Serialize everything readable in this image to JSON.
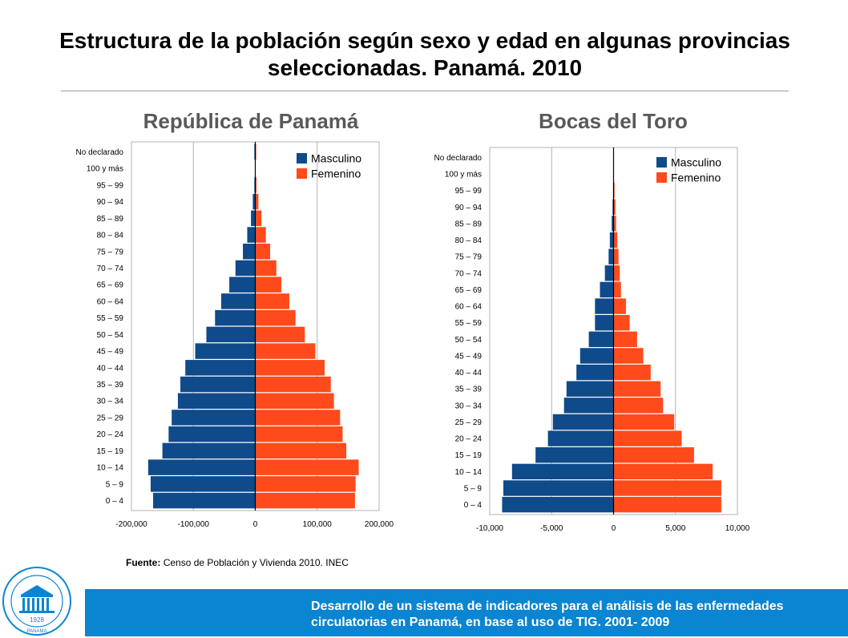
{
  "page": {
    "title": "Estructura de la población según sexo y edad en algunas provincias seleccionadas. Panamá. 2010",
    "source_label": "Fuente:",
    "source_text": "Censo de Población y Vivienda  2010. INEC",
    "footer_text": "Desarrollo de un sistema de indicadores para el análisis de las enfermedades circulatorias en Panamá, en base al uso de TIG. 2001- 2009",
    "logo": {
      "icon": "institute-seal-icon",
      "year": "1928",
      "place": "PANAMA"
    }
  },
  "colors": {
    "male": "#0f4a8a",
    "female": "#ff4a1c",
    "grid": "#b3b3b3",
    "footer": "#0a85d1"
  },
  "chart_data": [
    {
      "type": "bar",
      "orientation": "horizontal",
      "title": "República de Panamá",
      "categories": [
        "0 – 4",
        "5 – 9",
        "10 – 14",
        "15 – 19",
        "20 – 24",
        "25 – 29",
        "30 – 34",
        "35 – 39",
        "40 – 44",
        "45 – 49",
        "50 – 54",
        "55 – 59",
        "60 – 64",
        "65 – 69",
        "70 – 74",
        "75 – 79",
        "80 – 84",
        "85 – 89",
        "90 – 94",
        "95 – 99",
        "100 y más",
        "No declarado"
      ],
      "series": [
        {
          "name": "Masculino",
          "values": [
            -165000,
            -169000,
            -173000,
            -150000,
            -140000,
            -135000,
            -125000,
            -121000,
            -113000,
            -97000,
            -79000,
            -65000,
            -55000,
            -42000,
            -32000,
            -20000,
            -13000,
            -7000,
            -4000,
            -1500,
            -500,
            -1500
          ]
        },
        {
          "name": "Femenino",
          "values": [
            161000,
            162000,
            167000,
            147000,
            141000,
            137000,
            127000,
            122000,
            112000,
            97000,
            80000,
            65000,
            55000,
            42000,
            34000,
            24000,
            17000,
            10000,
            5000,
            2000,
            700,
            1500
          ]
        }
      ],
      "xlim": [
        -200000,
        200000
      ],
      "xticks": [
        "-200,000",
        "-100,000",
        "0",
        "100,000",
        "200,000"
      ],
      "legend": "top-right"
    },
    {
      "type": "bar",
      "orientation": "horizontal",
      "title": "Bocas del Toro",
      "categories": [
        "0 – 4",
        "5 – 9",
        "10 – 14",
        "15 – 19",
        "20 – 24",
        "25 – 29",
        "30 – 34",
        "35 – 39",
        "40 – 44",
        "45 – 49",
        "50 – 54",
        "55 – 59",
        "60 – 64",
        "65 – 69",
        "70 – 74",
        "75 – 79",
        "80 – 84",
        "85 – 89",
        "90 – 94",
        "95 – 99",
        "100 y más",
        "No declarado"
      ],
      "series": [
        {
          "name": "Masculino",
          "values": [
            -9000,
            -8900,
            -8200,
            -6300,
            -5300,
            -4900,
            -4000,
            -3800,
            -3000,
            -2700,
            -2000,
            -1500,
            -1500,
            -1100,
            -700,
            -400,
            -300,
            -150,
            -80,
            -40,
            -10,
            -10
          ]
        },
        {
          "name": "Femenino",
          "values": [
            8700,
            8700,
            8000,
            6500,
            5500,
            4900,
            4000,
            3800,
            3000,
            2400,
            1900,
            1300,
            1000,
            600,
            500,
            400,
            300,
            200,
            150,
            80,
            20,
            10
          ]
        }
      ],
      "xlim": [
        -10000,
        10000
      ],
      "xticks": [
        "-10,000",
        "-5,000",
        "0",
        "5,000",
        "10,000"
      ],
      "legend": "top-right"
    }
  ]
}
